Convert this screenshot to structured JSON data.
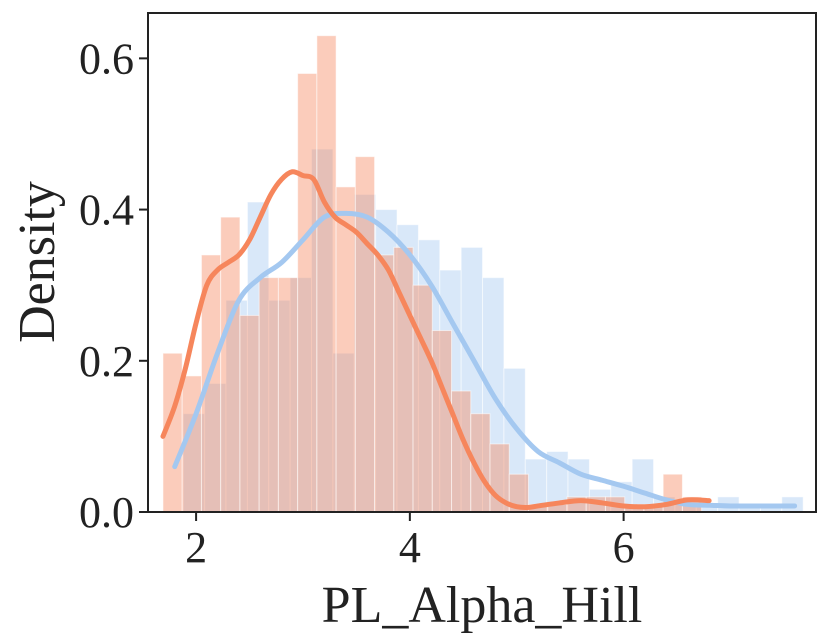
{
  "chart_data": {
    "type": "histogram+kde",
    "xlabel": "PL_Alpha_Hill",
    "ylabel": "Density",
    "xlim": [
      1.55,
      7.8
    ],
    "ylim": [
      0,
      0.66
    ],
    "xticks": [
      2,
      4,
      6
    ],
    "yticks": [
      0.0,
      0.2,
      0.4,
      0.6
    ],
    "xtick_labels": [
      "2",
      "4",
      "6"
    ],
    "ytick_labels": [
      "0.0",
      "0.2",
      "0.4",
      "0.6"
    ],
    "grid": false,
    "legend": "none",
    "series": [
      {
        "color": "#a4c8f0",
        "hist_bins": [
          [
            1.88,
            2.08,
            0.13
          ],
          [
            2.08,
            2.28,
            0.17
          ],
          [
            2.28,
            2.48,
            0.28
          ],
          [
            2.48,
            2.68,
            0.41
          ],
          [
            2.68,
            2.88,
            0.28
          ],
          [
            2.88,
            3.08,
            0.31
          ],
          [
            3.08,
            3.28,
            0.48
          ],
          [
            3.28,
            3.48,
            0.21
          ],
          [
            3.48,
            3.68,
            0.42
          ],
          [
            3.68,
            3.88,
            0.4
          ],
          [
            3.88,
            4.08,
            0.38
          ],
          [
            4.08,
            4.28,
            0.36
          ],
          [
            4.28,
            4.48,
            0.32
          ],
          [
            4.48,
            4.68,
            0.35
          ],
          [
            4.68,
            4.88,
            0.31
          ],
          [
            4.88,
            5.08,
            0.19
          ],
          [
            5.08,
            5.28,
            0.07
          ],
          [
            5.28,
            5.48,
            0.08
          ],
          [
            5.48,
            5.68,
            0.07
          ],
          [
            5.68,
            5.88,
            0.03
          ],
          [
            5.88,
            6.08,
            0.04
          ],
          [
            6.08,
            6.28,
            0.07
          ],
          [
            6.28,
            6.48,
            0.02
          ],
          [
            6.48,
            6.68,
            0.01
          ],
          [
            6.68,
            6.88,
            0.01
          ],
          [
            6.88,
            7.08,
            0.02
          ],
          [
            7.08,
            7.28,
            0.01
          ],
          [
            7.28,
            7.48,
            0.01
          ],
          [
            7.48,
            7.68,
            0.02
          ]
        ],
        "kde_x": [
          1.8,
          2.0,
          2.2,
          2.4,
          2.6,
          2.8,
          3.0,
          3.2,
          3.4,
          3.6,
          3.8,
          4.0,
          4.2,
          4.4,
          4.6,
          4.8,
          5.0,
          5.2,
          5.4,
          5.6,
          5.8,
          6.0,
          6.2,
          6.4,
          6.6,
          6.8,
          7.0,
          7.2,
          7.4,
          7.6
        ],
        "kde_y": [
          0.06,
          0.13,
          0.21,
          0.28,
          0.31,
          0.33,
          0.36,
          0.39,
          0.395,
          0.39,
          0.37,
          0.34,
          0.3,
          0.25,
          0.2,
          0.15,
          0.11,
          0.08,
          0.065,
          0.05,
          0.042,
          0.034,
          0.025,
          0.016,
          0.01,
          0.009,
          0.008,
          0.008,
          0.008,
          0.008
        ]
      },
      {
        "color": "#f6865c",
        "hist_bins": [
          [
            1.69,
            1.87,
            0.21
          ],
          [
            1.87,
            2.05,
            0.18
          ],
          [
            2.05,
            2.23,
            0.34
          ],
          [
            2.23,
            2.41,
            0.39
          ],
          [
            2.41,
            2.59,
            0.26
          ],
          [
            2.59,
            2.77,
            0.31
          ],
          [
            2.77,
            2.95,
            0.31
          ],
          [
            2.95,
            3.13,
            0.58
          ],
          [
            3.13,
            3.31,
            0.63
          ],
          [
            3.31,
            3.49,
            0.43
          ],
          [
            3.49,
            3.67,
            0.47
          ],
          [
            3.67,
            3.85,
            0.34
          ],
          [
            3.85,
            4.03,
            0.35
          ],
          [
            4.03,
            4.21,
            0.3
          ],
          [
            4.21,
            4.39,
            0.24
          ],
          [
            4.39,
            4.57,
            0.16
          ],
          [
            4.57,
            4.75,
            0.13
          ],
          [
            4.75,
            4.93,
            0.09
          ],
          [
            4.93,
            5.11,
            0.05
          ],
          [
            5.11,
            5.29,
            0.01
          ],
          [
            5.29,
            5.47,
            0.01
          ],
          [
            5.47,
            5.65,
            0.02
          ],
          [
            5.65,
            5.83,
            0.02
          ],
          [
            5.83,
            6.01,
            0.02
          ],
          [
            6.01,
            6.19,
            0.01
          ],
          [
            6.19,
            6.37,
            0.01
          ],
          [
            6.37,
            6.55,
            0.05
          ],
          [
            6.55,
            6.73,
            0.02
          ]
        ],
        "kde_x": [
          1.69,
          1.8,
          1.9,
          2.0,
          2.1,
          2.2,
          2.3,
          2.4,
          2.5,
          2.6,
          2.7,
          2.8,
          2.9,
          3.0,
          3.1,
          3.2,
          3.3,
          3.4,
          3.5,
          3.6,
          3.7,
          3.8,
          3.9,
          4.0,
          4.1,
          4.2,
          4.3,
          4.4,
          4.5,
          4.6,
          4.7,
          4.8,
          4.9,
          5.0,
          5.1,
          5.2,
          5.4,
          5.6,
          5.8,
          6.0,
          6.2,
          6.4,
          6.6,
          6.8
        ],
        "kde_y": [
          0.1,
          0.14,
          0.19,
          0.25,
          0.3,
          0.32,
          0.33,
          0.34,
          0.36,
          0.39,
          0.42,
          0.44,
          0.45,
          0.445,
          0.44,
          0.41,
          0.39,
          0.38,
          0.37,
          0.355,
          0.34,
          0.32,
          0.29,
          0.26,
          0.23,
          0.2,
          0.165,
          0.13,
          0.095,
          0.065,
          0.04,
          0.022,
          0.012,
          0.007,
          0.006,
          0.008,
          0.012,
          0.015,
          0.012,
          0.008,
          0.007,
          0.01,
          0.016,
          0.015
        ]
      }
    ]
  }
}
